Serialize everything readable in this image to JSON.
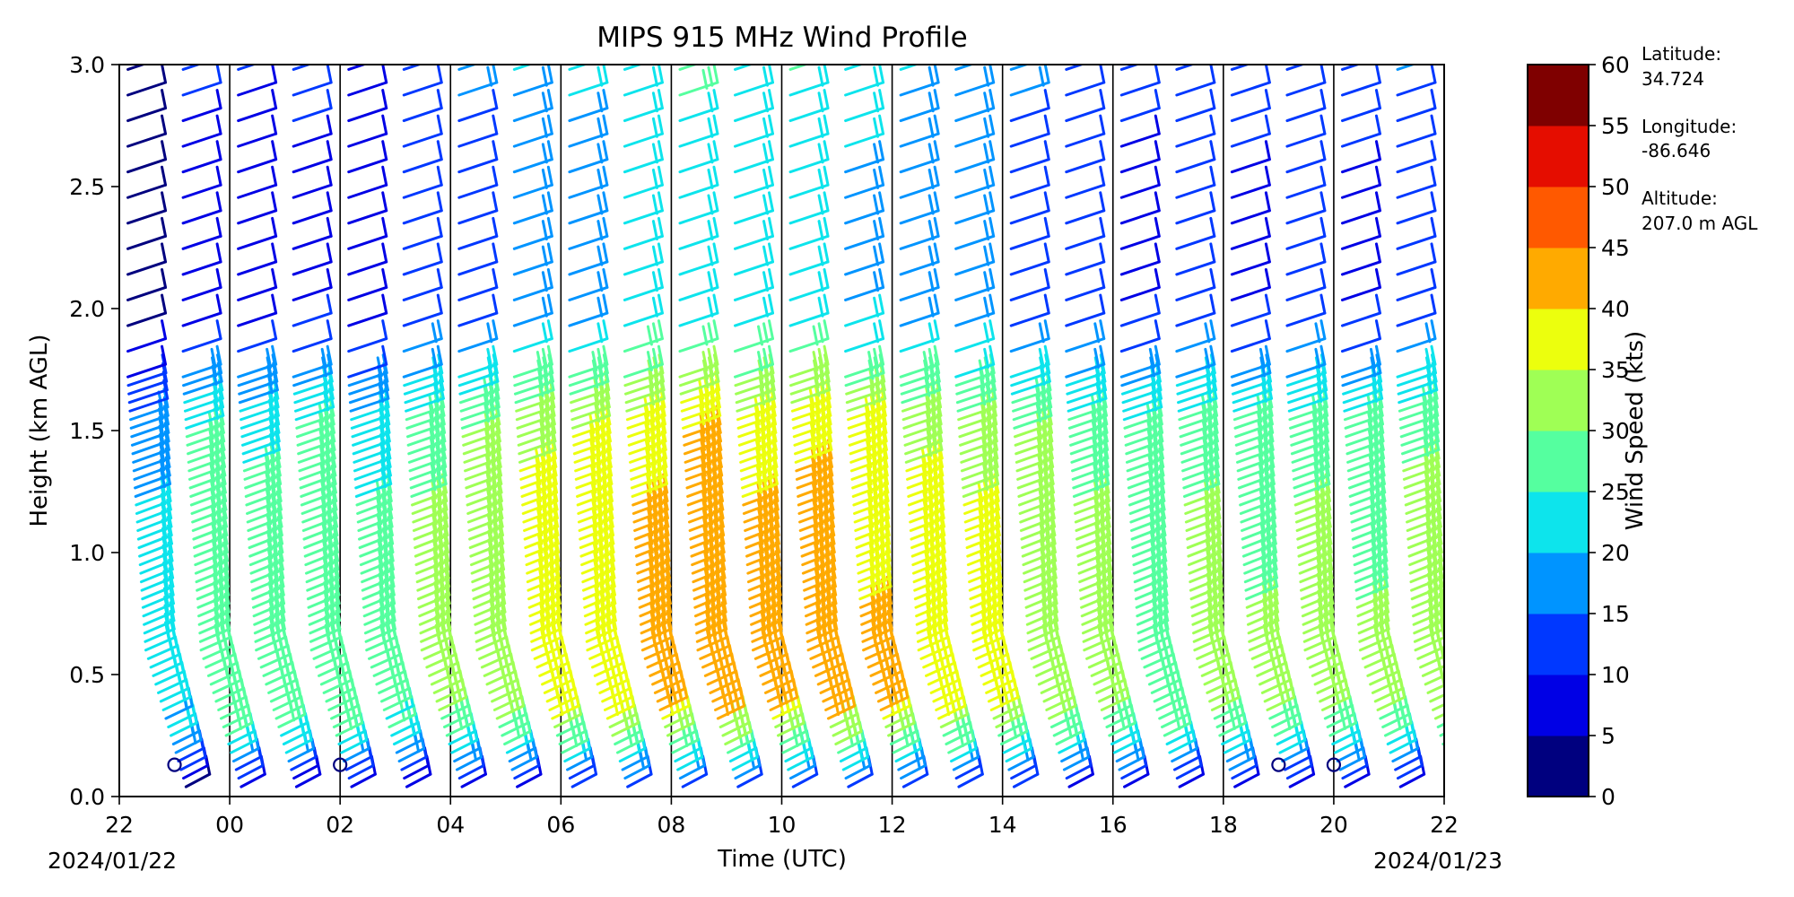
{
  "chart_data": {
    "type": "wind-barb-profile",
    "title": "MIPS 915 MHz Wind Profile",
    "xlabel": "Time (UTC)",
    "ylabel": "Height (km AGL)",
    "x_start_label": "2024/01/22",
    "x_end_label": "2024/01/23",
    "xlim_hours": [
      22,
      46
    ],
    "x_ticks": [
      {
        "hour": 22,
        "label": "22"
      },
      {
        "hour": 24,
        "label": "00"
      },
      {
        "hour": 26,
        "label": "02"
      },
      {
        "hour": 28,
        "label": "04"
      },
      {
        "hour": 30,
        "label": "06"
      },
      {
        "hour": 32,
        "label": "08"
      },
      {
        "hour": 34,
        "label": "10"
      },
      {
        "hour": 36,
        "label": "12"
      },
      {
        "hour": 38,
        "label": "14"
      },
      {
        "hour": 40,
        "label": "16"
      },
      {
        "hour": 42,
        "label": "18"
      },
      {
        "hour": 44,
        "label": "20"
      },
      {
        "hour": 46,
        "label": "22"
      }
    ],
    "ylim_km": [
      0.0,
      3.0
    ],
    "y_ticks": [
      "0.0",
      "0.5",
      "1.0",
      "1.5",
      "2.0",
      "2.5",
      "3.0"
    ],
    "vertical_gridlines_hours": [
      24,
      26,
      28,
      30,
      32,
      34,
      36,
      38,
      40,
      42,
      44
    ],
    "profile_times_hours": [
      22,
      23,
      24,
      25,
      26,
      27,
      28,
      29,
      30,
      31,
      32,
      33,
      34,
      35,
      36,
      37,
      38,
      39,
      40,
      41,
      42,
      43,
      44,
      45
    ],
    "calm_markers": [
      {
        "hour": 23.0,
        "height_km": 0.13
      },
      {
        "hour": 26.0,
        "height_km": 0.13
      },
      {
        "hour": 43.0,
        "height_km": 0.13
      },
      {
        "hour": 44.0,
        "height_km": 0.13
      }
    ],
    "speed_profile_kts": [
      {
        "height_km": 0.0,
        "speed": 6
      },
      {
        "height_km": 0.1,
        "speed": 15
      },
      {
        "height_km": 0.2,
        "speed": 25
      },
      {
        "height_km": 0.35,
        "speed": 33
      },
      {
        "height_km": 0.5,
        "speed": 34
      },
      {
        "height_km": 0.8,
        "speed": 33
      },
      {
        "height_km": 1.2,
        "speed": 32
      },
      {
        "height_km": 1.5,
        "speed": 30
      },
      {
        "height_km": 1.7,
        "speed": 22
      },
      {
        "height_km": 2.0,
        "speed": 12
      },
      {
        "height_km": 2.5,
        "speed": 12
      },
      {
        "height_km": 3.0,
        "speed": 17
      }
    ],
    "hourly_speed_adjust_kts": [
      -12,
      -5,
      -6,
      -4,
      -7,
      -2,
      0,
      4,
      5,
      8,
      10,
      8,
      9,
      7,
      4,
      3,
      0,
      -2,
      -4,
      -2,
      -3,
      -2,
      -3,
      -1
    ],
    "colorbar": {
      "label": "Wind Speed (kts)",
      "ticks": [
        "0",
        "5",
        "10",
        "15",
        "20",
        "25",
        "30",
        "35",
        "40",
        "45",
        "50",
        "55",
        "60"
      ],
      "bins": [
        {
          "min": 0,
          "max": 5,
          "color": "#00007f"
        },
        {
          "min": 5,
          "max": 10,
          "color": "#0000e5"
        },
        {
          "min": 10,
          "max": 15,
          "color": "#0038ff"
        },
        {
          "min": 15,
          "max": 20,
          "color": "#0094ff"
        },
        {
          "min": 20,
          "max": 25,
          "color": "#0de4ec"
        },
        {
          "min": 25,
          "max": 30,
          "color": "#55ff9f"
        },
        {
          "min": 30,
          "max": 35,
          "color": "#9fff55"
        },
        {
          "min": 35,
          "max": 40,
          "color": "#ecff0d"
        },
        {
          "min": 40,
          "max": 45,
          "color": "#ffaa00"
        },
        {
          "min": 45,
          "max": 50,
          "color": "#ff5900"
        },
        {
          "min": 50,
          "max": 55,
          "color": "#e50d00"
        },
        {
          "min": 55,
          "max": 60,
          "color": "#7f0000"
        }
      ]
    },
    "station_info": {
      "latitude_label": "Latitude:",
      "latitude_value": "34.724",
      "longitude_label": "Longitude:",
      "longitude_value": "-86.646",
      "altitude_label": "Altitude:",
      "altitude_value": "207.0 m AGL"
    }
  }
}
